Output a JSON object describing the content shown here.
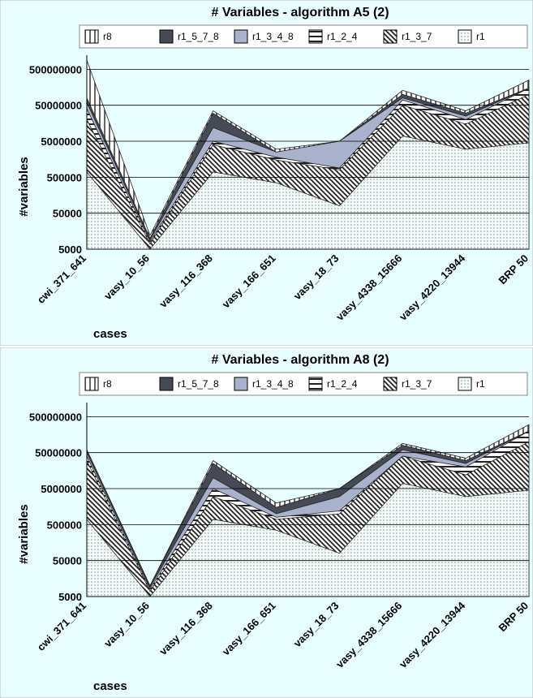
{
  "chart_data": [
    {
      "type": "area",
      "title": "# Variables - algorithm A5 (2)",
      "x_label": "cases",
      "y_label": "#variables",
      "categories": [
        "cwi_371_641",
        "vasy_10_56",
        "vasy_116_368",
        "vasy_166_651",
        "vasy_18_73",
        "vasy_4338_15666",
        "vasy_4220_13944",
        "BRP 50"
      ],
      "series": [
        {
          "name": "r8",
          "color": "#333333",
          "values": [
            900000000,
            12000,
            35000000,
            3000000,
            5000000,
            130000000,
            35000000,
            250000000
          ]
        },
        {
          "name": "r1_5_7_8",
          "color": "#454a55",
          "values": [
            80000000,
            10000,
            30000000,
            2500000,
            5000000,
            100000000,
            30000000,
            150000000
          ]
        },
        {
          "name": "r1_3_4_8",
          "color": "#a8b2cc",
          "values": [
            60000000,
            9000,
            12000000,
            2500000,
            5000000,
            80000000,
            25000000,
            150000000
          ]
        },
        {
          "name": "r1_2_4",
          "color": "#222222",
          "values": [
            40000000,
            8000,
            5000000,
            1800000,
            900000,
            70000000,
            20000000,
            150000000
          ]
        },
        {
          "name": "r1_3_7",
          "color": "#222222",
          "values": [
            20000000,
            7000,
            4000000,
            1500000,
            800000,
            50000000,
            15000000,
            100000000
          ]
        },
        {
          "name": "r1",
          "color": "#555555",
          "values": [
            700000,
            5000,
            700000,
            350000,
            80000,
            7000000,
            3000000,
            4500000
          ]
        }
      ],
      "ylim": [
        5000,
        1000000000
      ],
      "yticks": [
        5000,
        50000,
        500000,
        5000000,
        50000000,
        500000000
      ],
      "log_scale": true,
      "grid": true
    },
    {
      "type": "area",
      "title": "# Variables - algorithm A8 (2)",
      "x_label": "cases",
      "y_label": "#variables",
      "categories": [
        "cwi_371_641",
        "vasy_10_56",
        "vasy_116_368",
        "vasy_166_651",
        "vasy_18_73",
        "vasy_4338_15666",
        "vasy_4220_13944",
        "BRP 50"
      ],
      "series": [
        {
          "name": "r8",
          "color": "#333333",
          "values": [
            60000000,
            10000,
            30000000,
            2000000,
            5000000,
            90000000,
            35000000,
            300000000
          ]
        },
        {
          "name": "r1_5_7_8",
          "color": "#454a55",
          "values": [
            60000000,
            10000,
            25000000,
            1500000,
            5000000,
            80000000,
            30000000,
            200000000
          ]
        },
        {
          "name": "r1_3_4_8",
          "color": "#a8b2cc",
          "values": [
            50000000,
            9000,
            10000000,
            1000000,
            3000000,
            60000000,
            25000000,
            200000000
          ]
        },
        {
          "name": "r1_2_4",
          "color": "#222222",
          "values": [
            40000000,
            8000,
            5000000,
            800000,
            1200000,
            40000000,
            20000000,
            200000000
          ]
        },
        {
          "name": "r1_3_7",
          "color": "#222222",
          "values": [
            30000000,
            7000,
            3000000,
            700000,
            1000000,
            40000000,
            12000000,
            100000000
          ]
        },
        {
          "name": "r1",
          "color": "#555555",
          "values": [
            700000,
            5000,
            700000,
            350000,
            80000,
            7000000,
            3000000,
            4500000
          ]
        }
      ],
      "ylim": [
        5000,
        1000000000
      ],
      "yticks": [
        5000,
        50000,
        500000,
        5000000,
        50000000,
        500000000
      ],
      "log_scale": true,
      "grid": true
    }
  ]
}
